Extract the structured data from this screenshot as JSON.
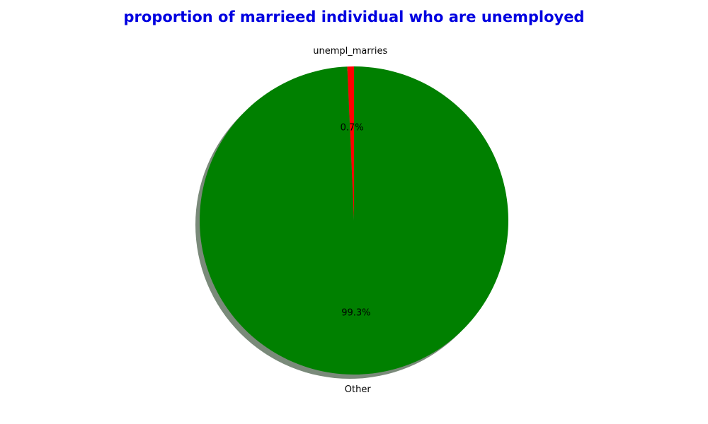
{
  "chart_data": {
    "type": "pie",
    "title": "proportion of marrieed individual who are unemployed",
    "title_color": "#0000e0",
    "categories": [
      "unempl_marries",
      "Other"
    ],
    "values": [
      0.7,
      99.3
    ],
    "percent_labels": [
      "0.7%",
      "99.3%"
    ],
    "colors": [
      "#ff0000",
      "#008000"
    ],
    "start_angle_deg": 90,
    "direction": "counterclockwise",
    "shadow": true,
    "shadow_color": "#7a8a7a"
  }
}
